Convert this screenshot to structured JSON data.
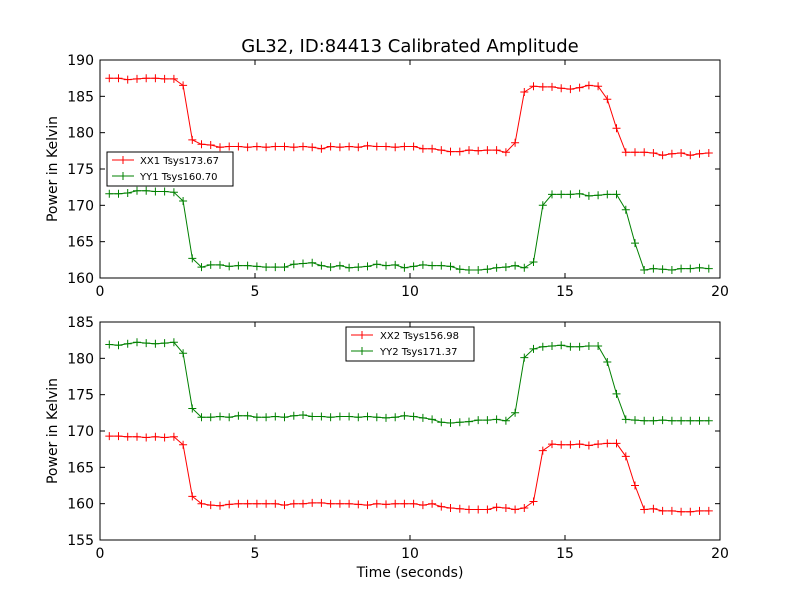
{
  "chart_data": [
    {
      "type": "line",
      "title": "GL32, ID:84413 Calibrated Amplitude",
      "xlabel": "",
      "ylabel": "Power in Kelvin",
      "xlim": [
        0,
        20
      ],
      "ylim": [
        160,
        190
      ],
      "xticks": [
        "0",
        "5",
        "10",
        "15",
        "20"
      ],
      "yticks": [
        "160",
        "165",
        "170",
        "175",
        "180",
        "185",
        "190"
      ],
      "legend_position": "middle-left",
      "series": [
        {
          "name": "XX1 Tsys173.67",
          "color": "#ff0000",
          "values": [
            187.5,
            187.5,
            187.3,
            187.4,
            187.5,
            187.5,
            187.4,
            187.4,
            186.5,
            179.0,
            178.4,
            178.3,
            178.0,
            178.1,
            178.1,
            178.0,
            178.1,
            178.0,
            178.1,
            178.1,
            178.0,
            178.1,
            178.0,
            177.8,
            178.1,
            178.0,
            178.1,
            178.0,
            178.2,
            178.1,
            178.1,
            178.0,
            178.1,
            178.1,
            177.8,
            177.8,
            177.6,
            177.4,
            177.4,
            177.6,
            177.5,
            177.6,
            177.6,
            177.3,
            178.6,
            185.6,
            186.4,
            186.3,
            186.3,
            186.1,
            186.0,
            186.2,
            186.5,
            186.4,
            184.6,
            180.6,
            177.3,
            177.3,
            177.3,
            177.2,
            176.9,
            177.1,
            177.2,
            176.9,
            177.1,
            177.2
          ]
        },
        {
          "name": "YY1 Tsys160.70",
          "color": "#008000",
          "values": [
            171.6,
            171.6,
            171.7,
            172.0,
            172.0,
            171.9,
            171.9,
            171.8,
            170.6,
            162.7,
            161.5,
            161.8,
            161.8,
            161.6,
            161.7,
            161.7,
            161.6,
            161.5,
            161.5,
            161.5,
            161.9,
            162.0,
            162.1,
            161.7,
            161.5,
            161.7,
            161.4,
            161.5,
            161.6,
            161.9,
            161.7,
            161.8,
            161.4,
            161.6,
            161.8,
            161.7,
            161.7,
            161.6,
            161.2,
            161.1,
            161.1,
            161.2,
            161.4,
            161.5,
            161.7,
            161.4,
            162.2,
            170.0,
            171.5,
            171.5,
            171.5,
            171.6,
            171.3,
            171.4,
            171.5,
            171.5,
            169.4,
            164.8,
            161.1,
            161.3,
            161.2,
            161.1,
            161.3,
            161.3,
            161.4,
            161.3
          ]
        }
      ]
    },
    {
      "type": "line",
      "title": "",
      "xlabel": "Time (seconds)",
      "ylabel": "Power in Kelvin",
      "xlim": [
        0,
        20
      ],
      "ylim": [
        155,
        185
      ],
      "xticks": [
        "0",
        "5",
        "10",
        "15",
        "20"
      ],
      "yticks": [
        "155",
        "160",
        "165",
        "170",
        "175",
        "180",
        "185"
      ],
      "legend_position": "upper-center",
      "series": [
        {
          "name": "XX2 Tsys156.98",
          "color": "#ff0000",
          "values": [
            169.3,
            169.3,
            169.2,
            169.2,
            169.1,
            169.2,
            169.1,
            169.2,
            168.1,
            161.0,
            160.0,
            159.8,
            159.7,
            159.9,
            160.0,
            160.0,
            160.0,
            160.0,
            160.0,
            159.8,
            160.0,
            160.0,
            160.1,
            160.1,
            160.0,
            160.0,
            160.0,
            159.9,
            159.8,
            160.0,
            159.9,
            160.0,
            160.0,
            160.0,
            159.8,
            160.0,
            159.6,
            159.4,
            159.3,
            159.2,
            159.2,
            159.2,
            159.5,
            159.4,
            159.2,
            159.4,
            160.3,
            167.3,
            168.2,
            168.1,
            168.1,
            168.2,
            168.0,
            168.2,
            168.3,
            168.3,
            166.5,
            162.5,
            159.2,
            159.3,
            159.0,
            159.0,
            158.9,
            158.9,
            159.0,
            159.0
          ]
        },
        {
          "name": "YY2 Tsys171.37",
          "color": "#008000",
          "values": [
            181.9,
            181.8,
            182.0,
            182.2,
            182.1,
            182.0,
            182.1,
            182.2,
            180.7,
            173.1,
            171.9,
            171.9,
            172.0,
            171.9,
            172.1,
            172.1,
            171.9,
            171.9,
            172.0,
            171.9,
            172.1,
            172.2,
            172.0,
            172.0,
            171.9,
            172.0,
            172.0,
            171.9,
            172.0,
            171.9,
            171.8,
            171.9,
            172.1,
            172.0,
            171.8,
            171.6,
            171.2,
            171.1,
            171.2,
            171.3,
            171.5,
            171.5,
            171.6,
            171.4,
            172.5,
            180.1,
            181.3,
            181.6,
            181.7,
            181.8,
            181.6,
            181.6,
            181.7,
            181.7,
            179.5,
            175.1,
            171.6,
            171.5,
            171.4,
            171.4,
            171.5,
            171.4,
            171.4,
            171.4,
            171.4,
            171.4
          ]
        }
      ]
    }
  ]
}
